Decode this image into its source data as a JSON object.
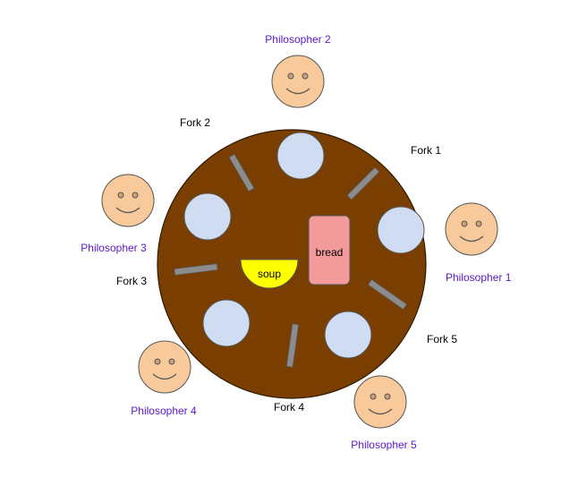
{
  "colors": {
    "table": "#7a3f00",
    "plate": "#cfdcf2",
    "plate_stroke": "#555555",
    "fork": "#8c8c8c",
    "face": "#f7c99b",
    "face_stroke": "#555555",
    "philosopher_text": "#5a16c8",
    "fork_text": "#000000",
    "soup": "#ffff00",
    "bread": "#f39a9a"
  },
  "table": {
    "soup_label": "soup",
    "bread_label": "bread"
  },
  "philosophers": [
    {
      "label": "Philosopher 1"
    },
    {
      "label": "Philosopher 2"
    },
    {
      "label": "Philosopher 3"
    },
    {
      "label": "Philosopher 4"
    },
    {
      "label": "Philosopher 5"
    }
  ],
  "forks": [
    {
      "label": "Fork 1"
    },
    {
      "label": "Fork 2"
    },
    {
      "label": "Fork 3"
    },
    {
      "label": "Fork 4"
    },
    {
      "label": "Fork 5"
    }
  ]
}
